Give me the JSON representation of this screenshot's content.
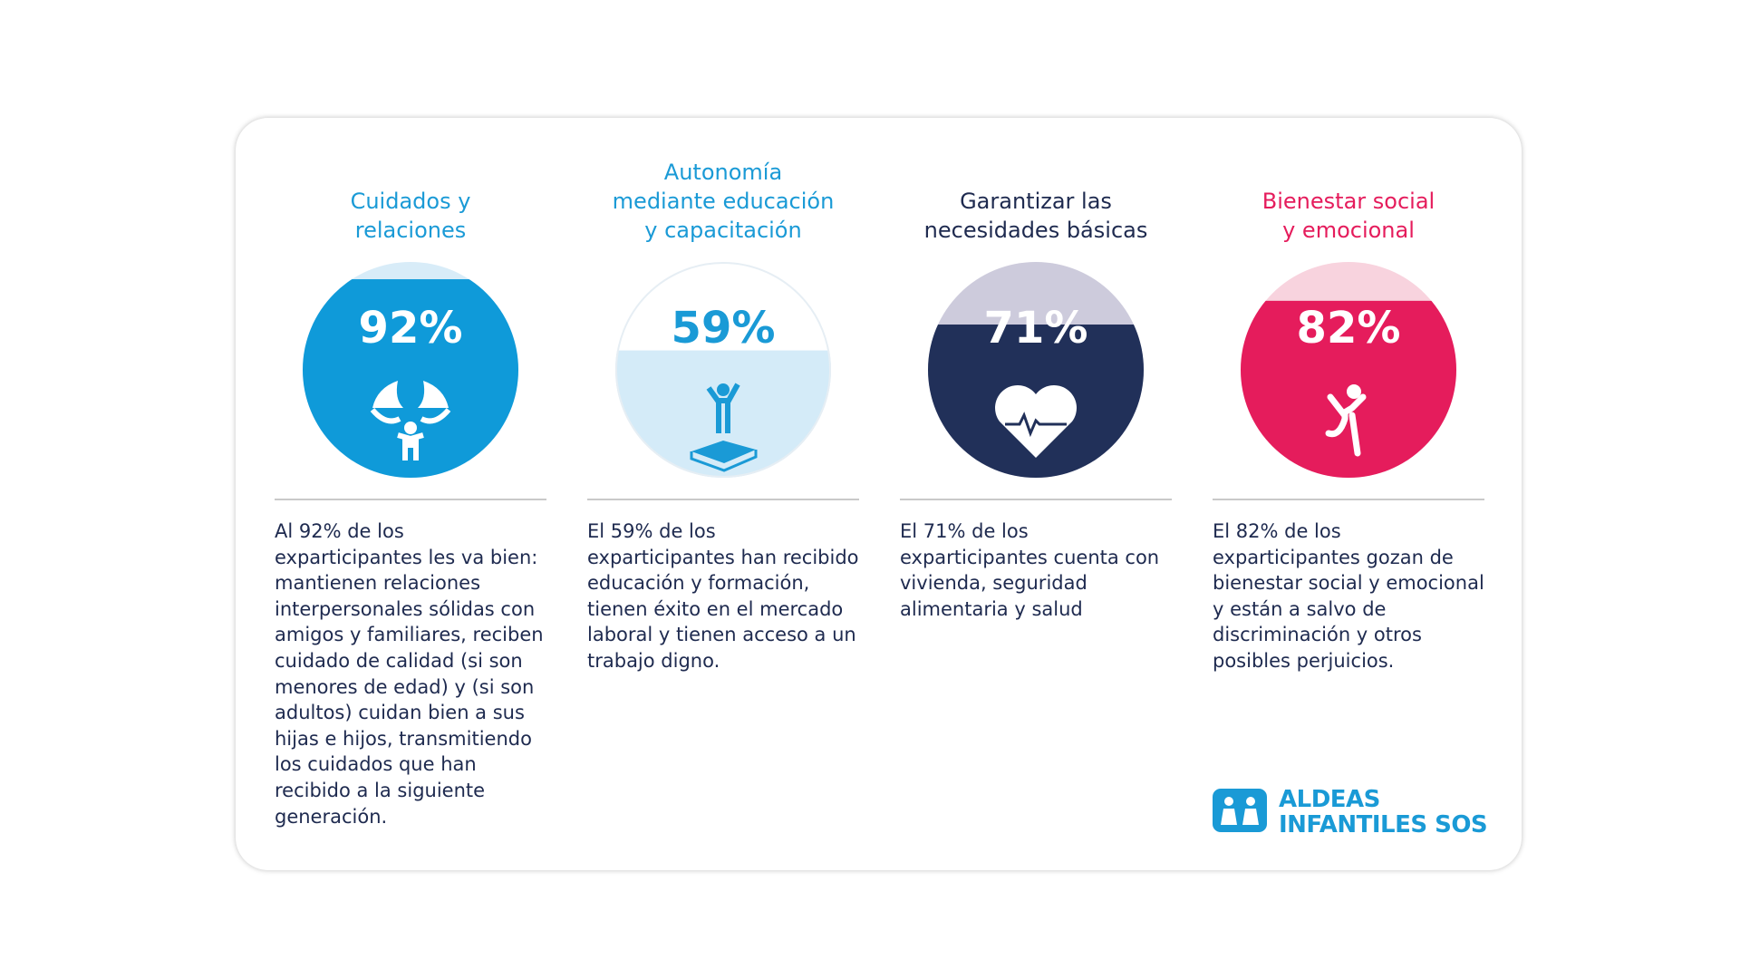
{
  "cards": [
    {
      "title": "Cuidados y\nrelaciones",
      "percent": 92,
      "percent_label": "92%",
      "color": "#0f9ad9",
      "track_color": "#d8ecf8",
      "text_color": "#ffffff",
      "title_color": "#1a9ad6",
      "description": "Al 92% de los exparticipantes les va bien: mantienen relaciones interpersonales sólidas con amigos y familiares, reciben cuidado de calidad (si son menores de edad) y (si son adultos) cuidan bien a sus hijas e hijos, transmitiendo los cuidados que han recibido a la siguiente generación."
    },
    {
      "title": "Autonomía\nmediante educación\ny capacitación",
      "percent": 59,
      "percent_label": "59%",
      "color": "#d4ebf8",
      "track_color": "#ffffff",
      "text_color": "#1a9ad6",
      "title_color": "#1a9ad6",
      "description": "El 59% de los exparticipantes han recibido educación y formación, tienen éxito en el mercado laboral y tienen acceso a un trabajo digno."
    },
    {
      "title": "Garantizar las\nnecesidades básicas",
      "percent": 71,
      "percent_label": "71%",
      "color": "#213059",
      "track_color": "#cdcbdc",
      "text_color": "#ffffff",
      "title_color": "#1e2a4f",
      "description": "El 71% de los exparticipantes cuenta con vivienda, seguridad alimentaria y salud"
    },
    {
      "title": "Bienestar social\ny emocional",
      "percent": 82,
      "percent_label": "82%",
      "color": "#e51c5c",
      "track_color": "#f8d3de",
      "text_color": "#ffffff",
      "title_color": "#e51c5c",
      "description": "El 82% de los exparticipantes gozan de bienestar social y emocional y están a salvo de discriminación y otros posibles perjuicios."
    }
  ],
  "logo": {
    "line1": "ALDEAS",
    "line2": "INFANTILES SOS"
  }
}
